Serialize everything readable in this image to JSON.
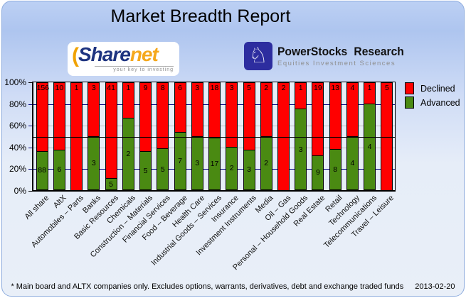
{
  "title": "Market Breadth Report",
  "logos": {
    "sharenet": {
      "paren": "(",
      "part1": "Share",
      "part2": "net",
      "tagline": "your key to investing"
    },
    "powerstocks": {
      "name1": "PowerStocks",
      "name2": "Research",
      "tagline": "Equities Investment Sciences",
      "icon": "chess-knight-icon",
      "box_color": "#2d2d9f",
      "knight_glyph": "♘"
    }
  },
  "legend": {
    "declined_label": "Declined",
    "advanced_label": "Advanced"
  },
  "footer": {
    "note": "* Main board and ALTX companies only. Excludes options, warrants, derivatives, debt and exchange traded funds",
    "date": "2013-02-20"
  },
  "chart_data": {
    "type": "bar",
    "stacked": true,
    "title": "Market Breadth Report",
    "unit": "percent_stacked_100",
    "categories": [
      "All share",
      "AltX",
      "Automobiles – Parts",
      "Banks",
      "Basic Resources",
      "Chemicals",
      "Construction – Materials",
      "Financial Services",
      "Food – Beverage",
      "Health Care",
      "Industrial Goods – Services",
      "Insurance",
      "Investment Instruments",
      "Media",
      "Oil – Gas",
      "Personal – Household Goods",
      "Real Estate",
      "Retail",
      "Technology",
      "Telecommunications",
      "Travel – Leisure"
    ],
    "series": [
      {
        "name": "Advanced",
        "color": "#4a8a12",
        "values": [
          88,
          6,
          0,
          3,
          5,
          2,
          5,
          5,
          7,
          3,
          17,
          2,
          3,
          2,
          0,
          3,
          9,
          8,
          4,
          4,
          0
        ]
      },
      {
        "name": "Declined",
        "color": "#ff0000",
        "values": [
          156,
          10,
          1,
          3,
          41,
          1,
          9,
          8,
          6,
          3,
          18,
          3,
          5,
          2,
          2,
          1,
          19,
          13,
          4,
          1,
          5
        ]
      }
    ],
    "y_ticks": [
      "0%",
      "20%",
      "40%",
      "60%",
      "80%",
      "100%"
    ],
    "ylim": [
      0,
      100
    ],
    "reference_line_percent": 50,
    "gridlines": {
      "navy_levels": [
        20,
        80
      ],
      "gray_levels": [
        40,
        60
      ],
      "navy_color": "#000080",
      "gray_color": "#bfbfbf",
      "reference_color": "#000000"
    },
    "legend_position": "top-right"
  }
}
